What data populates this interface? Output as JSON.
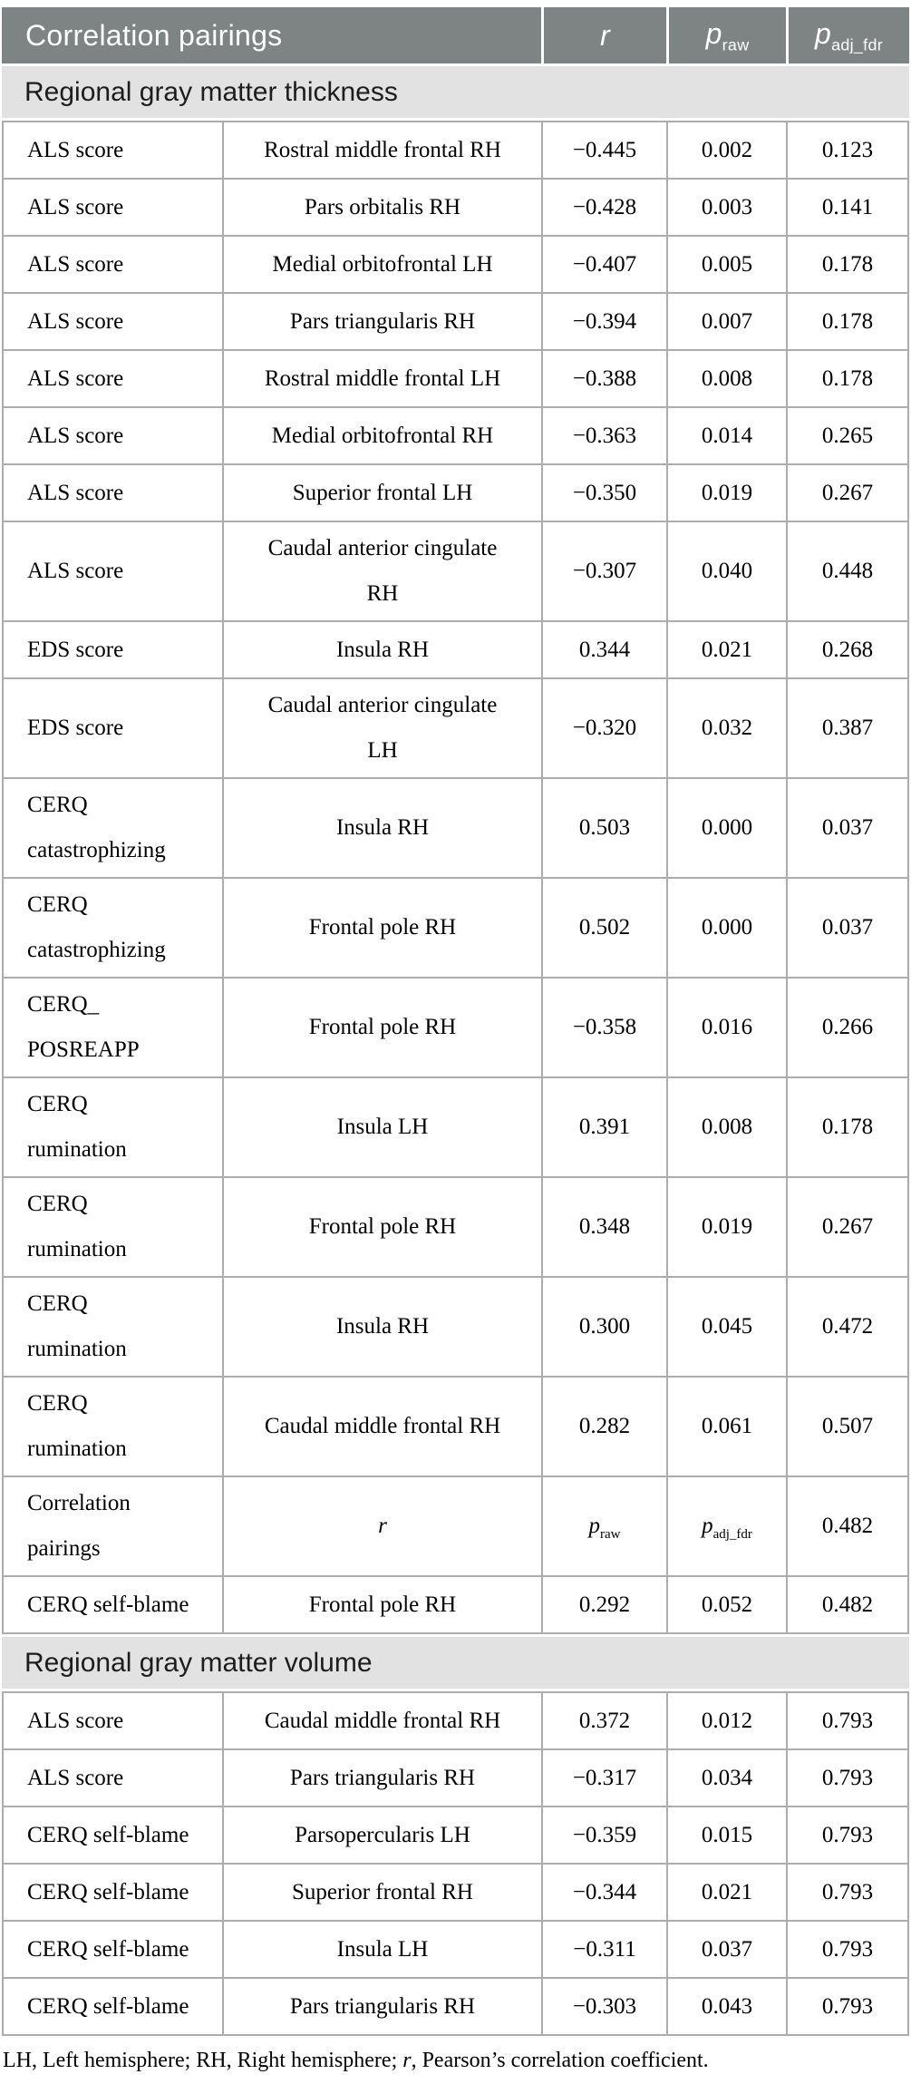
{
  "table": {
    "header": {
      "pairings_label": "Correlation pairings",
      "r": {
        "text": "r",
        "sub": ""
      },
      "p_raw": {
        "text": "p",
        "sub": "raw"
      },
      "p_adj": {
        "text": "p",
        "sub": "adj_fdr"
      }
    },
    "sections": [
      {
        "title": "Regional gray matter thickness",
        "rows": [
          {
            "cells": [
              {
                "t": "ALS score"
              },
              {
                "t": "Rostral middle frontal RH"
              },
              {
                "t": "−0.445"
              },
              {
                "t": "0.002"
              },
              {
                "t": "0.123"
              }
            ]
          },
          {
            "cells": [
              {
                "t": "ALS score"
              },
              {
                "t": "Pars orbitalis RH"
              },
              {
                "t": "−0.428"
              },
              {
                "t": "0.003"
              },
              {
                "t": "0.141"
              }
            ]
          },
          {
            "cells": [
              {
                "t": "ALS score"
              },
              {
                "t": "Medial orbitofrontal LH"
              },
              {
                "t": "−0.407"
              },
              {
                "t": "0.005"
              },
              {
                "t": "0.178"
              }
            ]
          },
          {
            "cells": [
              {
                "t": "ALS score"
              },
              {
                "t": "Pars triangularis RH"
              },
              {
                "t": "−0.394"
              },
              {
                "t": "0.007"
              },
              {
                "t": "0.178"
              }
            ]
          },
          {
            "cells": [
              {
                "t": "ALS score"
              },
              {
                "t": "Rostral middle frontal LH"
              },
              {
                "t": "−0.388"
              },
              {
                "t": "0.008"
              },
              {
                "t": "0.178"
              }
            ]
          },
          {
            "cells": [
              {
                "t": "ALS score"
              },
              {
                "t": "Medial orbitofrontal RH"
              },
              {
                "t": "−0.363"
              },
              {
                "t": "0.014"
              },
              {
                "t": "0.265"
              }
            ]
          },
          {
            "cells": [
              {
                "t": "ALS score"
              },
              {
                "t": "Superior frontal LH"
              },
              {
                "t": "−0.350"
              },
              {
                "t": "0.019"
              },
              {
                "t": "0.267"
              }
            ]
          },
          {
            "cells": [
              {
                "t": "ALS score"
              },
              {
                "t": "Caudal anterior cingulate\nRH"
              },
              {
                "t": "−0.307"
              },
              {
                "t": "0.040"
              },
              {
                "t": "0.448"
              }
            ]
          },
          {
            "cells": [
              {
                "t": "EDS score"
              },
              {
                "t": "Insula RH"
              },
              {
                "t": "0.344"
              },
              {
                "t": "0.021"
              },
              {
                "t": "0.268"
              }
            ]
          },
          {
            "cells": [
              {
                "t": "EDS score"
              },
              {
                "t": "Caudal anterior cingulate\nLH"
              },
              {
                "t": "−0.320"
              },
              {
                "t": "0.032"
              },
              {
                "t": "0.387"
              }
            ]
          },
          {
            "cells": [
              {
                "t": "CERQ\ncatastrophizing"
              },
              {
                "t": "Insula RH"
              },
              {
                "t": "0.503"
              },
              {
                "t": "0.000"
              },
              {
                "t": "0.037"
              }
            ]
          },
          {
            "cells": [
              {
                "t": "CERQ\ncatastrophizing"
              },
              {
                "t": "Frontal pole RH"
              },
              {
                "t": "0.502"
              },
              {
                "t": "0.000"
              },
              {
                "t": "0.037"
              }
            ]
          },
          {
            "cells": [
              {
                "t": "CERQ_\nPOSREAPP"
              },
              {
                "t": "Frontal pole RH"
              },
              {
                "t": "−0.358"
              },
              {
                "t": "0.016"
              },
              {
                "t": "0.266"
              }
            ]
          },
          {
            "cells": [
              {
                "t": "CERQ\nrumination"
              },
              {
                "t": "Insula LH"
              },
              {
                "t": "0.391"
              },
              {
                "t": "0.008"
              },
              {
                "t": "0.178"
              }
            ]
          },
          {
            "cells": [
              {
                "t": "CERQ\nrumination"
              },
              {
                "t": "Frontal pole RH"
              },
              {
                "t": "0.348"
              },
              {
                "t": "0.019"
              },
              {
                "t": "0.267"
              }
            ]
          },
          {
            "cells": [
              {
                "t": "CERQ\nrumination"
              },
              {
                "t": "Insula RH"
              },
              {
                "t": "0.300"
              },
              {
                "t": "0.045"
              },
              {
                "t": "0.472"
              }
            ]
          },
          {
            "cells": [
              {
                "t": "CERQ\nrumination"
              },
              {
                "t": "Caudal middle frontal RH"
              },
              {
                "t": "0.282"
              },
              {
                "t": "0.061"
              },
              {
                "t": "0.507"
              }
            ]
          },
          {
            "cells": [
              {
                "t": "Correlation\npairings"
              },
              {
                "t": "r",
                "i": true
              },
              {
                "t": "p",
                "sub": "raw",
                "i": true
              },
              {
                "t": "p",
                "sub": "adj_fdr",
                "i": true
              },
              {
                "t": "0.482"
              }
            ]
          },
          {
            "cells": [
              {
                "t": "CERQ self-blame"
              },
              {
                "t": "Frontal pole RH"
              },
              {
                "t": "0.292"
              },
              {
                "t": "0.052"
              },
              {
                "t": "0.482"
              }
            ]
          }
        ]
      },
      {
        "title": "Regional gray matter volume",
        "rows": [
          {
            "cells": [
              {
                "t": "ALS score"
              },
              {
                "t": "Caudal middle frontal RH"
              },
              {
                "t": "0.372"
              },
              {
                "t": "0.012"
              },
              {
                "t": "0.793"
              }
            ]
          },
          {
            "cells": [
              {
                "t": "ALS score"
              },
              {
                "t": "Pars triangularis RH"
              },
              {
                "t": "−0.317"
              },
              {
                "t": "0.034"
              },
              {
                "t": "0.793"
              }
            ]
          },
          {
            "cells": [
              {
                "t": "CERQ self-blame"
              },
              {
                "t": "Parsopercularis LH"
              },
              {
                "t": "−0.359"
              },
              {
                "t": "0.015"
              },
              {
                "t": "0.793"
              }
            ]
          },
          {
            "cells": [
              {
                "t": "CERQ self-blame"
              },
              {
                "t": "Superior frontal RH"
              },
              {
                "t": "−0.344"
              },
              {
                "t": "0.021"
              },
              {
                "t": "0.793"
              }
            ]
          },
          {
            "cells": [
              {
                "t": "CERQ self-blame"
              },
              {
                "t": "Insula LH"
              },
              {
                "t": "−0.311"
              },
              {
                "t": "0.037"
              },
              {
                "t": "0.793"
              }
            ]
          },
          {
            "cells": [
              {
                "t": "CERQ self-blame"
              },
              {
                "t": "Pars triangularis RH"
              },
              {
                "t": "−0.303"
              },
              {
                "t": "0.043"
              },
              {
                "t": "0.793"
              }
            ]
          }
        ]
      }
    ],
    "footnote": {
      "part1": "LH, Left hemisphere; RH, Right hemisphere; ",
      "r": "r",
      "part2": ", Pearson’s correlation coefficient."
    }
  }
}
